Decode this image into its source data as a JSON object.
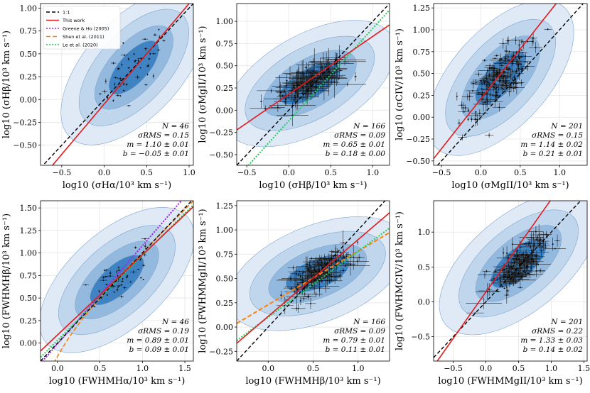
{
  "chart_data": [
    {
      "type": "scatter",
      "xlabel": "log10 (σHα/10³ km s⁻¹)",
      "ylabel": "log10 (σHβ/10³ km s⁻¹)",
      "xlim": [
        -0.75,
        1.05
      ],
      "ylim": [
        -0.72,
        1.05
      ],
      "xticks": [
        -0.5,
        0.0,
        0.5,
        1.0
      ],
      "yticks": [
        -0.5,
        -0.25,
        0.0,
        0.25,
        0.5,
        0.75,
        1.0
      ],
      "xtick_labels": [
        "−0.5",
        "0.0",
        "0.5",
        "1.0"
      ],
      "ytick_labels": [
        "−0.50",
        "−0.25",
        "0.00",
        "0.25",
        "0.50",
        "0.75",
        "1.00"
      ],
      "fit": {
        "slope": 1.1,
        "intercept": -0.05
      },
      "contour_center": [
        0.35,
        0.35
      ],
      "contour_angle": 48,
      "cloud": {
        "cx": 0.35,
        "cy": 0.35,
        "sx": 0.2,
        "sy": 0.2,
        "n": 46,
        "err": 0.03
      },
      "extra_lines": [],
      "stats": {
        "n": "N = 46",
        "rms": "σRMS = 0.15",
        "m": "m = 1.10 ± 0.01",
        "b": "b = −0.05 ± 0.01"
      },
      "legend": [
        {
          "label": "1:1",
          "color": "#000000",
          "dash": "5,3"
        },
        {
          "label": "This work",
          "color": "#e41a1c",
          "dash": ""
        },
        {
          "label": "Greene & Ho (2005)",
          "color": "#a020f0",
          "dash": "2,2"
        },
        {
          "label": "Shen et al. (2011)",
          "color": "#ff7f0e",
          "dash": "6,3"
        },
        {
          "label": "Le et al. (2020)",
          "color": "#22cc55",
          "dash": "2,2"
        }
      ]
    },
    {
      "type": "scatter",
      "xlabel": "log10 (σHβ/10³ km s⁻¹)",
      "ylabel": "log10 (σMgII/10³ km s⁻¹)",
      "xlim": [
        -0.62,
        1.2
      ],
      "ylim": [
        -0.62,
        1.2
      ],
      "xticks": [
        -0.5,
        0.0,
        0.5,
        1.0
      ],
      "yticks": [
        -0.5,
        -0.25,
        0.0,
        0.25,
        0.5,
        0.75,
        1.0
      ],
      "xtick_labels": [
        "−0.5",
        "0.0",
        "0.5",
        "1.0"
      ],
      "ytick_labels": [
        "−0.50",
        "−0.25",
        "0.00",
        "0.25",
        "0.50",
        "0.75",
        "1.00"
      ],
      "fit": {
        "slope": 0.65,
        "intercept": 0.18
      },
      "contour_center": [
        0.25,
        0.3
      ],
      "contour_angle": 30,
      "cloud": {
        "cx": 0.25,
        "cy": 0.32,
        "sx": 0.2,
        "sy": 0.12,
        "n": 166,
        "err": 0.2
      },
      "extra_lines": [
        {
          "name": "Le et al. (2020)",
          "slope": 1.04,
          "intercept": -0.12,
          "color": "#22cc55",
          "dash": "2,2"
        }
      ],
      "stats": {
        "n": "N = 166",
        "rms": "σRMS = 0.09",
        "m": "m = 0.65 ± 0.01",
        "b": "b = 0.18 ± 0.00"
      },
      "legend": []
    },
    {
      "type": "scatter",
      "xlabel": "log10 (σMgII/10³ km s⁻¹)",
      "ylabel": "log10 (σCIV/10³ km s⁻¹)",
      "xlim": [
        -0.6,
        1.35
      ],
      "ylim": [
        -0.55,
        1.3
      ],
      "xticks": [
        -0.5,
        0.0,
        0.5,
        1.0
      ],
      "yticks": [
        -0.5,
        -0.25,
        0.0,
        0.25,
        0.5,
        0.75,
        1.0,
        1.25
      ],
      "xtick_labels": [
        "−0.5",
        "0.0",
        "0.5",
        "1.0"
      ],
      "ytick_labels": [
        "−0.50",
        "−0.25",
        "0.00",
        "0.25",
        "0.50",
        "0.75",
        "1.00",
        "1.25"
      ],
      "fit": {
        "slope": 1.14,
        "intercept": 0.21
      },
      "contour_center": [
        0.25,
        0.45
      ],
      "contour_angle": 48,
      "cloud": {
        "cx": 0.22,
        "cy": 0.45,
        "sx": 0.2,
        "sy": 0.2,
        "n": 201,
        "err": 0.1
      },
      "extra_lines": [],
      "stats": {
        "n": "N = 201",
        "rms": "σRMS = 0.15",
        "m": "m = 1.14 ± 0.02",
        "b": "b = 0.21 ± 0.01"
      },
      "legend": []
    },
    {
      "type": "scatter",
      "xlabel": "log10 (FWHMHα/10³ km s⁻¹)",
      "ylabel": "log10 (FWHMHβ/10³ km s⁻¹)",
      "xlim": [
        -0.2,
        1.6
      ],
      "ylim": [
        -0.2,
        1.58
      ],
      "xticks": [
        0.0,
        0.5,
        1.0,
        1.5
      ],
      "yticks": [
        0.0,
        0.25,
        0.5,
        0.75,
        1.0,
        1.25,
        1.5
      ],
      "xtick_labels": [
        "0.0",
        "0.5",
        "1.0",
        "1.5"
      ],
      "ytick_labels": [
        "0.00",
        "0.25",
        "0.50",
        "0.75",
        "1.00",
        "1.25",
        "1.50"
      ],
      "fit": {
        "slope": 0.89,
        "intercept": 0.09
      },
      "contour_center": [
        0.7,
        0.7
      ],
      "contour_angle": 42,
      "cloud": {
        "cx": 0.75,
        "cy": 0.72,
        "sx": 0.2,
        "sy": 0.18,
        "n": 46,
        "err": 0.03
      },
      "extra_lines": [
        {
          "name": "Greene & Ho (2005)",
          "slope": 1.09,
          "intercept": -0.01,
          "color": "#a020f0",
          "dash": "2,2"
        },
        {
          "name": "Le et al. (2020)",
          "slope": 0.94,
          "intercept": 0.03,
          "color": "#22cc55",
          "dash": "2,2"
        }
      ],
      "curve_shen": true,
      "stats": {
        "n": "N = 46",
        "rms": "σRMS = 0.19",
        "m": "m = 0.89 ± 0.01",
        "b": "b = 0.09 ± 0.01"
      },
      "legend": []
    },
    {
      "type": "scatter",
      "xlabel": "log10 (FWHMHβ/10³ km s⁻¹)",
      "ylabel": "log10 (FWHMMgII/10³ km s⁻¹)",
      "xlim": [
        -0.35,
        1.35
      ],
      "ylim": [
        -0.35,
        1.3
      ],
      "xticks": [
        0.0,
        0.5,
        1.0
      ],
      "yticks": [
        -0.25,
        0.0,
        0.25,
        0.5,
        0.75,
        1.0,
        1.25
      ],
      "xtick_labels": [
        "0.0",
        "0.5",
        "1.0"
      ],
      "ytick_labels": [
        "−0.25",
        "0.00",
        "0.25",
        "0.50",
        "0.75",
        "1.00",
        "1.25"
      ],
      "fit": {
        "slope": 0.79,
        "intercept": 0.11
      },
      "contour_center": [
        0.55,
        0.55
      ],
      "contour_angle": 22,
      "cloud": {
        "cx": 0.55,
        "cy": 0.55,
        "sx": 0.17,
        "sy": 0.12,
        "n": 166,
        "err": 0.12
      },
      "extra_lines": [
        {
          "name": "Shen et al. (2011)",
          "slope": 0.55,
          "intercept": 0.23,
          "color": "#ff7f0e",
          "dash": "6,3"
        },
        {
          "name": "Le et al. (2020)",
          "slope": 0.68,
          "intercept": 0.1,
          "color": "#22cc55",
          "dash": "2,2"
        }
      ],
      "stats": {
        "n": "N = 166",
        "rms": "σRMS = 0.09",
        "m": "m = 0.79 ± 0.01",
        "b": "b = 0.11 ± 0.01"
      },
      "legend": []
    },
    {
      "type": "scatter",
      "xlabel": "log10 (FWHMMgII/10³ km s⁻¹)",
      "ylabel": "log10 (FWHMCIV/10³ km s⁻¹)",
      "xlim": [
        -0.8,
        1.55
      ],
      "ylim": [
        -0.85,
        1.45
      ],
      "xticks": [
        -0.5,
        0.0,
        0.5,
        1.0,
        1.5
      ],
      "yticks": [
        -0.5,
        0.0,
        0.5,
        1.0
      ],
      "xtick_labels": [
        "−0.5",
        "0.0",
        "0.5",
        "1.0",
        "1.5"
      ],
      "ytick_labels": [
        "−0.5",
        "0.0",
        "0.5",
        "1.0"
      ],
      "fit": {
        "slope": 1.33,
        "intercept": 0.14
      },
      "contour_center": [
        0.5,
        0.55
      ],
      "contour_angle": 40,
      "cloud": {
        "cx": 0.5,
        "cy": 0.52,
        "sx": 0.2,
        "sy": 0.2,
        "n": 201,
        "err": 0.15
      },
      "extra_lines": [],
      "stats": {
        "n": "N = 201",
        "rms": "σRMS = 0.22",
        "m": "m = 1.33 ± 0.03",
        "b": "b = 0.14 ± 0.02"
      },
      "legend": []
    }
  ],
  "colors": {
    "one_to_one": "#000000",
    "this_work": "#e41a1c",
    "greene_ho": "#a020f0",
    "shen": "#ff7f0e",
    "le": "#22cc55",
    "contour_outer": "#dde9f6",
    "contour_mid": "#bcd4ec",
    "contour_inner": "#8fb6dc",
    "contour_core": "#3a7fc0"
  }
}
